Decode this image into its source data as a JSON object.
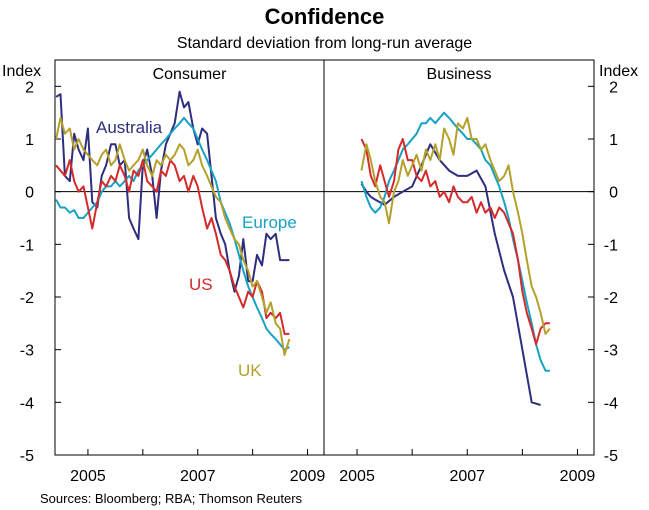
{
  "chart_data": {
    "type": "line",
    "title": "Confidence",
    "subtitle": "Standard deviation from long-run average",
    "ylabel_left": "Index",
    "ylabel_right": "Index",
    "ylim": [
      -5,
      2.5
    ],
    "yticks": [
      2,
      1,
      0,
      -1,
      -2,
      -3,
      -4,
      -5
    ],
    "xlim": [
      2004.4,
      2009.3
    ],
    "xticks": [
      2005,
      2007,
      2009
    ],
    "source": "Sources: Bloomberg; RBA; Thomson Reuters",
    "colors": {
      "Australia": "#2e2e7e",
      "Europe": "#17a2c4",
      "US": "#d42a2a",
      "UK": "#b3a12c"
    },
    "panels": [
      {
        "title": "Consumer",
        "series": [
          {
            "name": "Australia",
            "label": "Australia",
            "x": [
              2004.42,
              2004.5,
              2004.58,
              2004.67,
              2004.75,
              2004.83,
              2004.92,
              2005.0,
              2005.08,
              2005.17,
              2005.25,
              2005.33,
              2005.42,
              2005.5,
              2005.58,
              2005.67,
              2005.75,
              2005.83,
              2005.92,
              2006.0,
              2006.08,
              2006.17,
              2006.25,
              2006.33,
              2006.42,
              2006.5,
              2006.58,
              2006.67,
              2006.75,
              2006.83,
              2006.92,
              2007.0,
              2007.08,
              2007.17,
              2007.25,
              2007.33,
              2007.42,
              2007.5,
              2007.58,
              2007.67,
              2007.75,
              2007.83,
              2007.92,
              2008.0,
              2008.08,
              2008.17,
              2008.25,
              2008.33,
              2008.42,
              2008.5,
              2008.58,
              2008.67
            ],
            "y": [
              1.8,
              1.85,
              0.3,
              0.2,
              1.1,
              0.8,
              0.6,
              1.2,
              -0.2,
              -0.3,
              0.3,
              0.5,
              0.9,
              0.9,
              0.5,
              0.6,
              -0.5,
              -0.7,
              -0.9,
              0.5,
              0.8,
              0.3,
              -0.5,
              0.4,
              0.9,
              1.1,
              1.3,
              1.9,
              1.6,
              1.7,
              1.2,
              0.9,
              1.2,
              1.1,
              0.3,
              -0.5,
              -0.8,
              -1.0,
              -1.5,
              -1.9,
              -1.6,
              -0.9,
              -1.7,
              -1.7,
              -1.2,
              -1.4,
              -0.8,
              -0.9,
              -0.8,
              -1.3,
              -1.3,
              -1.3
            ]
          },
          {
            "name": "Europe",
            "label": "Europe",
            "x": [
              2004.42,
              2004.5,
              2004.58,
              2004.67,
              2004.75,
              2004.83,
              2004.92,
              2005.0,
              2005.08,
              2005.17,
              2005.25,
              2005.33,
              2005.42,
              2005.5,
              2005.58,
              2005.67,
              2005.75,
              2005.83,
              2005.92,
              2006.0,
              2006.08,
              2006.17,
              2006.25,
              2006.33,
              2006.42,
              2006.5,
              2006.58,
              2006.67,
              2006.75,
              2006.83,
              2006.92,
              2007.0,
              2007.08,
              2007.17,
              2007.25,
              2007.33,
              2007.42,
              2007.5,
              2007.58,
              2007.67,
              2007.75,
              2007.83,
              2007.92,
              2008.0,
              2008.08,
              2008.17,
              2008.25,
              2008.33,
              2008.42,
              2008.5,
              2008.58,
              2008.67
            ],
            "y": [
              -0.15,
              -0.3,
              -0.3,
              -0.4,
              -0.35,
              -0.5,
              -0.5,
              -0.4,
              -0.3,
              -0.2,
              0.0,
              0.1,
              0.1,
              0.2,
              0.1,
              0.2,
              0.3,
              0.2,
              0.4,
              0.5,
              0.6,
              0.7,
              0.8,
              0.9,
              1.0,
              1.1,
              1.2,
              1.3,
              1.4,
              1.3,
              1.2,
              1.0,
              0.8,
              0.6,
              0.4,
              0.2,
              -0.2,
              -0.4,
              -0.6,
              -0.9,
              -1.2,
              -1.5,
              -1.8,
              -2.0,
              -2.2,
              -2.4,
              -2.6,
              -2.7,
              -2.8,
              -2.9,
              -3.0,
              -2.95
            ]
          },
          {
            "name": "US",
            "label": "US",
            "x": [
              2004.42,
              2004.5,
              2004.58,
              2004.67,
              2004.75,
              2004.83,
              2004.92,
              2005.0,
              2005.08,
              2005.17,
              2005.25,
              2005.33,
              2005.42,
              2005.5,
              2005.58,
              2005.67,
              2005.75,
              2005.83,
              2005.92,
              2006.0,
              2006.08,
              2006.17,
              2006.25,
              2006.33,
              2006.42,
              2006.5,
              2006.58,
              2006.67,
              2006.75,
              2006.83,
              2006.92,
              2007.0,
              2007.08,
              2007.17,
              2007.25,
              2007.33,
              2007.42,
              2007.5,
              2007.58,
              2007.67,
              2007.75,
              2007.83,
              2007.92,
              2008.0,
              2008.08,
              2008.17,
              2008.25,
              2008.33,
              2008.42,
              2008.5,
              2008.58,
              2008.67
            ],
            "y": [
              0.5,
              0.4,
              0.3,
              0.6,
              0.2,
              0.0,
              0.1,
              -0.3,
              -0.7,
              -0.2,
              0.2,
              0.1,
              0.3,
              0.2,
              0.5,
              0.3,
              0.0,
              0.4,
              0.3,
              0.6,
              0.2,
              0.1,
              0.0,
              0.4,
              0.3,
              0.6,
              0.5,
              0.2,
              0.3,
              0.0,
              0.3,
              0.1,
              -0.3,
              -0.7,
              -0.5,
              -0.8,
              -1.2,
              -1.3,
              -1.5,
              -1.8,
              -2.0,
              -2.2,
              -1.9,
              -2.0,
              -1.7,
              -1.9,
              -2.4,
              -2.3,
              -2.4,
              -2.3,
              -2.7,
              -2.7
            ]
          },
          {
            "name": "UK",
            "label": "UK",
            "x": [
              2004.42,
              2004.5,
              2004.58,
              2004.67,
              2004.75,
              2004.83,
              2004.92,
              2005.0,
              2005.08,
              2005.17,
              2005.25,
              2005.33,
              2005.42,
              2005.5,
              2005.58,
              2005.67,
              2005.75,
              2005.83,
              2005.92,
              2006.0,
              2006.08,
              2006.17,
              2006.25,
              2006.33,
              2006.42,
              2006.5,
              2006.58,
              2006.67,
              2006.75,
              2006.83,
              2006.92,
              2007.0,
              2007.08,
              2007.17,
              2007.25,
              2007.33,
              2007.42,
              2007.5,
              2007.58,
              2007.67,
              2007.75,
              2007.83,
              2007.92,
              2008.0,
              2008.08,
              2008.17,
              2008.25,
              2008.33,
              2008.42,
              2008.5,
              2008.58,
              2008.67
            ],
            "y": [
              1.0,
              1.4,
              1.1,
              1.2,
              0.8,
              1.0,
              0.8,
              0.7,
              0.6,
              0.5,
              0.7,
              0.8,
              0.5,
              0.6,
              0.9,
              0.6,
              0.4,
              0.5,
              0.6,
              0.8,
              0.5,
              0.3,
              0.6,
              0.5,
              0.7,
              0.6,
              0.7,
              0.9,
              0.8,
              0.5,
              0.6,
              0.8,
              0.5,
              0.3,
              0.1,
              -0.1,
              -0.2,
              -0.5,
              -0.7,
              -0.9,
              -1.0,
              -1.3,
              -1.5,
              -1.8,
              -1.7,
              -2.0,
              -2.3,
              -2.1,
              -2.5,
              -2.6,
              -3.1,
              -2.8
            ]
          }
        ]
      },
      {
        "title": "Business",
        "series": [
          {
            "name": "Australia",
            "x": [
              2005.08,
              2005.17,
              2005.25,
              2005.33,
              2005.5,
              2005.67,
              2005.83,
              2006.0,
              2006.17,
              2006.33,
              2006.5,
              2006.67,
              2006.83,
              2007.0,
              2007.17,
              2007.33,
              2007.5,
              2007.67,
              2007.83,
              2008.0,
              2008.17,
              2008.33
            ],
            "y": [
              0.15,
              0.0,
              -0.1,
              -0.15,
              -0.25,
              -0.1,
              0.0,
              0.1,
              0.5,
              0.9,
              0.6,
              0.4,
              0.3,
              0.3,
              0.4,
              0.1,
              -0.8,
              -1.5,
              -2.0,
              -3.0,
              -4.0,
              -4.05
            ]
          },
          {
            "name": "Europe",
            "x": [
              2005.08,
              2005.17,
              2005.25,
              2005.33,
              2005.42,
              2005.5,
              2005.58,
              2005.67,
              2005.75,
              2005.83,
              2005.92,
              2006.0,
              2006.08,
              2006.17,
              2006.25,
              2006.33,
              2006.42,
              2006.5,
              2006.58,
              2006.67,
              2006.75,
              2006.83,
              2006.92,
              2007.0,
              2007.08,
              2007.17,
              2007.25,
              2007.33,
              2007.42,
              2007.5,
              2007.58,
              2007.67,
              2007.75,
              2007.83,
              2007.92,
              2008.0,
              2008.08,
              2008.17,
              2008.25,
              2008.33,
              2008.42,
              2008.5
            ],
            "y": [
              0.2,
              -0.1,
              -0.3,
              -0.4,
              -0.3,
              -0.1,
              0.2,
              0.4,
              0.6,
              0.8,
              0.9,
              1.0,
              1.1,
              1.3,
              1.3,
              1.4,
              1.3,
              1.4,
              1.5,
              1.4,
              1.3,
              1.2,
              1.1,
              1.0,
              1.0,
              0.9,
              0.8,
              0.6,
              0.5,
              0.3,
              0.1,
              -0.2,
              -0.5,
              -0.9,
              -1.3,
              -1.7,
              -2.1,
              -2.5,
              -2.9,
              -3.2,
              -3.4,
              -3.4
            ]
          },
          {
            "name": "US",
            "x": [
              2005.08,
              2005.17,
              2005.25,
              2005.33,
              2005.42,
              2005.5,
              2005.58,
              2005.67,
              2005.75,
              2005.83,
              2005.92,
              2006.0,
              2006.08,
              2006.17,
              2006.25,
              2006.33,
              2006.42,
              2006.5,
              2006.58,
              2006.67,
              2006.75,
              2006.83,
              2006.92,
              2007.0,
              2007.08,
              2007.17,
              2007.25,
              2007.33,
              2007.42,
              2007.5,
              2007.58,
              2007.67,
              2007.75,
              2007.83,
              2007.92,
              2008.0,
              2008.08,
              2008.17,
              2008.25,
              2008.33,
              2008.42,
              2008.5
            ],
            "y": [
              1.0,
              0.8,
              0.3,
              0.1,
              0.5,
              0.2,
              -0.1,
              0.2,
              0.8,
              1.0,
              0.6,
              0.6,
              0.3,
              0.2,
              0.4,
              0.1,
              0.2,
              -0.1,
              0.0,
              -0.2,
              0.1,
              -0.1,
              -0.2,
              -0.2,
              -0.1,
              -0.4,
              -0.2,
              -0.4,
              -0.3,
              -0.5,
              -0.3,
              -0.4,
              -0.6,
              -0.8,
              -1.3,
              -1.9,
              -2.3,
              -2.6,
              -2.9,
              -2.6,
              -2.5,
              -2.5
            ]
          },
          {
            "name": "UK",
            "x": [
              2005.08,
              2005.17,
              2005.25,
              2005.33,
              2005.42,
              2005.5,
              2005.58,
              2005.67,
              2005.75,
              2005.83,
              2005.92,
              2006.0,
              2006.08,
              2006.17,
              2006.25,
              2006.33,
              2006.42,
              2006.5,
              2006.58,
              2006.67,
              2006.75,
              2006.83,
              2006.92,
              2007.0,
              2007.08,
              2007.17,
              2007.25,
              2007.33,
              2007.42,
              2007.5,
              2007.58,
              2007.67,
              2007.75,
              2007.83,
              2007.92,
              2008.0,
              2008.08,
              2008.17,
              2008.25,
              2008.33,
              2008.42,
              2008.5
            ],
            "y": [
              0.4,
              0.9,
              0.6,
              0.2,
              -0.1,
              -0.2,
              -0.6,
              0.0,
              0.2,
              0.6,
              0.3,
              0.5,
              0.7,
              0.4,
              0.8,
              0.6,
              0.9,
              0.6,
              1.2,
              1.0,
              0.7,
              1.3,
              1.2,
              1.4,
              1.0,
              1.0,
              0.8,
              0.9,
              0.6,
              0.4,
              0.2,
              0.3,
              0.5,
              0.0,
              -0.4,
              -0.8,
              -1.3,
              -1.8,
              -2.0,
              -2.3,
              -2.7,
              -2.6
            ]
          }
        ]
      }
    ],
    "annotations": [
      {
        "panel": 0,
        "text": "Australia",
        "series": "Australia"
      },
      {
        "panel": 0,
        "text": "Europe",
        "series": "Europe"
      },
      {
        "panel": 0,
        "text": "US",
        "series": "US"
      },
      {
        "panel": 0,
        "text": "UK",
        "series": "UK"
      }
    ]
  }
}
